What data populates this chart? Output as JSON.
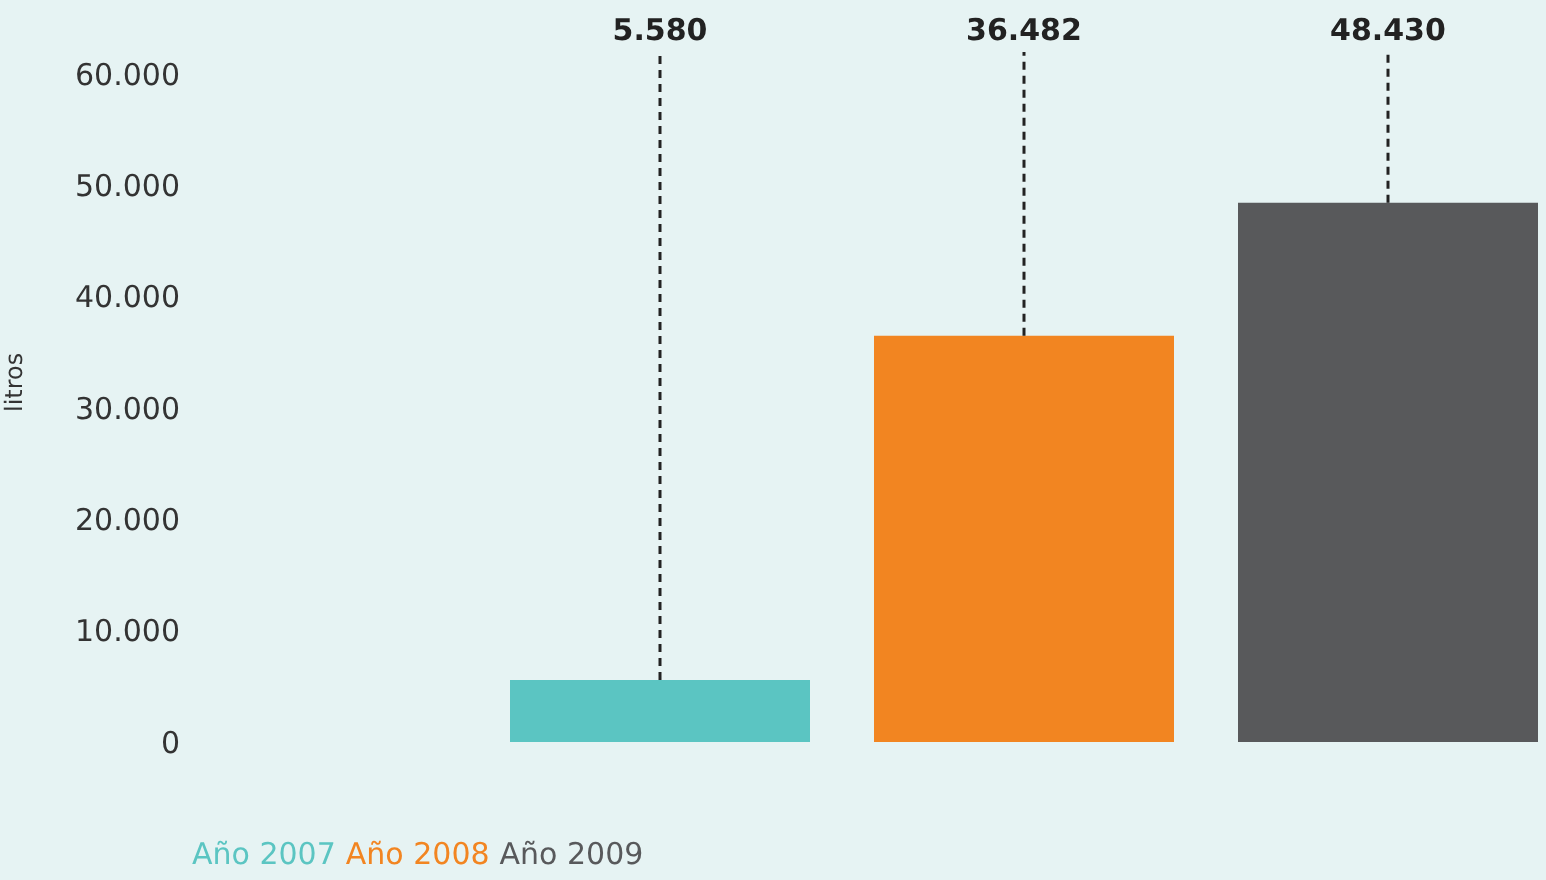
{
  "chart_data": {
    "type": "bar",
    "ylabel": "litros",
    "categories": [
      null
    ],
    "series": [
      {
        "name": "Año 2007",
        "color": "#5bc5c2",
        "values": [
          5580
        ],
        "value_labels": [
          "5.580"
        ]
      },
      {
        "name": "Año 2008",
        "color": "#f28521",
        "values": [
          36482
        ],
        "value_labels": [
          "36.482"
        ]
      },
      {
        "name": "Año 2009",
        "color": "#58595b",
        "values": [
          48430
        ],
        "value_labels": [
          "48.430"
        ]
      }
    ],
    "ylim": [
      0,
      60000
    ],
    "yticks": [
      {
        "value": 0,
        "label": "0"
      },
      {
        "value": 10000,
        "label": "10.000"
      },
      {
        "value": 20000,
        "label": "20.000"
      },
      {
        "value": 30000,
        "label": "30.000"
      },
      {
        "value": 40000,
        "label": "40.000"
      },
      {
        "value": 50000,
        "label": "50.000"
      },
      {
        "value": 60000,
        "label": "60.000"
      }
    ],
    "grid": false,
    "legend": "bottom left"
  }
}
